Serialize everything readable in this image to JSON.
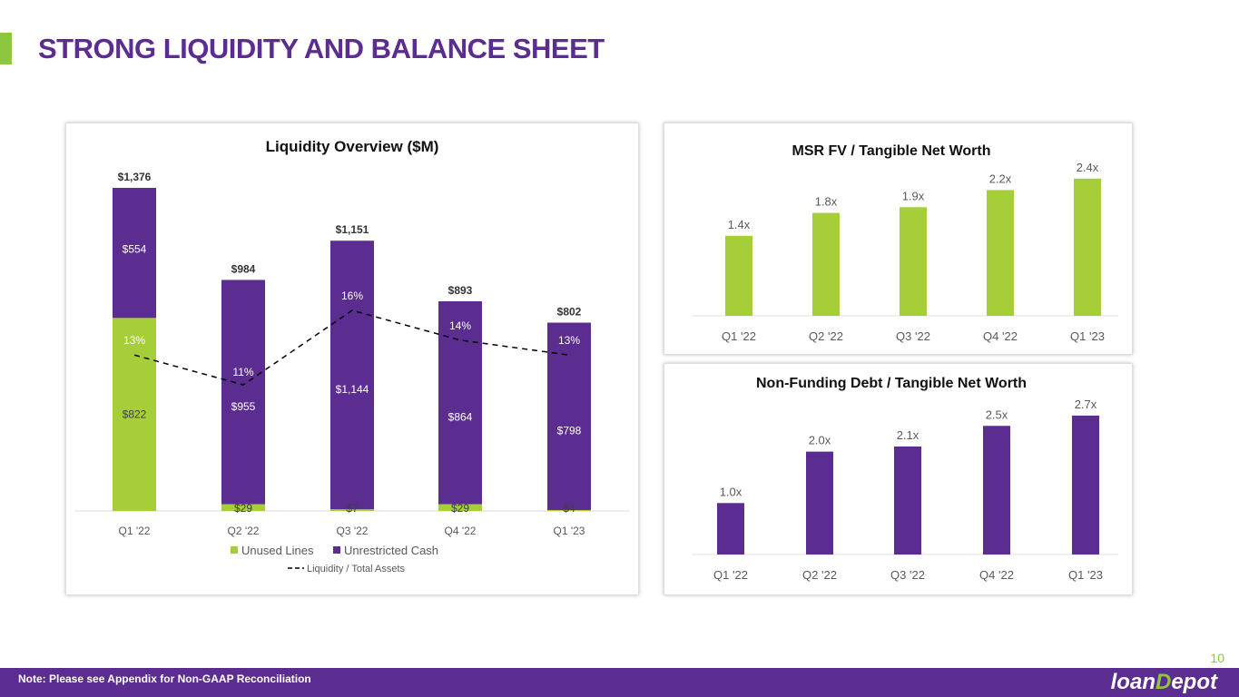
{
  "page": {
    "title": "STRONG LIQUIDITY AND BALANCE SHEET",
    "note": "Note: Please see Appendix for Non-GAAP Reconciliation",
    "page_number": "10",
    "logo": "loanDepot"
  },
  "colors": {
    "purple": "#5c2d91",
    "green": "#a6ce39"
  },
  "chart_data": [
    {
      "type": "bar",
      "stacked": true,
      "title": "Liquidity Overview ($M)",
      "categories": [
        "Q1 '22",
        "Q2 '22",
        "Q3 '22",
        "Q4 '22",
        "Q1 '23"
      ],
      "series": [
        {
          "name": "Unused Lines",
          "values": [
            822,
            29,
            7,
            29,
            4
          ],
          "labels": [
            "$822",
            "$29",
            "$7",
            "$29",
            "$4"
          ]
        },
        {
          "name": "Unrestricted Cash",
          "values": [
            554,
            955,
            1144,
            864,
            798
          ],
          "labels": [
            "$554",
            "$955",
            "$1,144",
            "$864",
            "$798"
          ]
        }
      ],
      "totals": [
        1376,
        984,
        1151,
        893,
        802
      ],
      "total_labels": [
        "$1,376",
        "$984",
        "$1,151",
        "$893",
        "$802"
      ],
      "line": {
        "name": "Liquidity / Total Assets",
        "values": [
          13,
          11,
          16,
          14,
          13
        ],
        "labels": [
          "13%",
          "11%",
          "16%",
          "14%",
          "13%"
        ]
      },
      "legend": [
        "Unused Lines",
        "Unrestricted Cash",
        "Liquidity / Total Assets"
      ]
    },
    {
      "type": "bar",
      "title": "MSR FV / Tangible Net Worth",
      "categories": [
        "Q1 '22",
        "Q2 '22",
        "Q3 '22",
        "Q4 '22",
        "Q1 '23"
      ],
      "values": [
        1.4,
        1.8,
        1.9,
        2.2,
        2.4
      ],
      "labels": [
        "1.4x",
        "1.8x",
        "1.9x",
        "2.2x",
        "2.4x"
      ]
    },
    {
      "type": "bar",
      "title": "Non-Funding Debt / Tangible Net Worth",
      "categories": [
        "Q1 '22",
        "Q2 '22",
        "Q3 '22",
        "Q4 '22",
        "Q1 '23"
      ],
      "values": [
        1.0,
        2.0,
        2.1,
        2.5,
        2.7
      ],
      "labels": [
        "1.0x",
        "2.0x",
        "2.1x",
        "2.5x",
        "2.7x"
      ]
    }
  ]
}
